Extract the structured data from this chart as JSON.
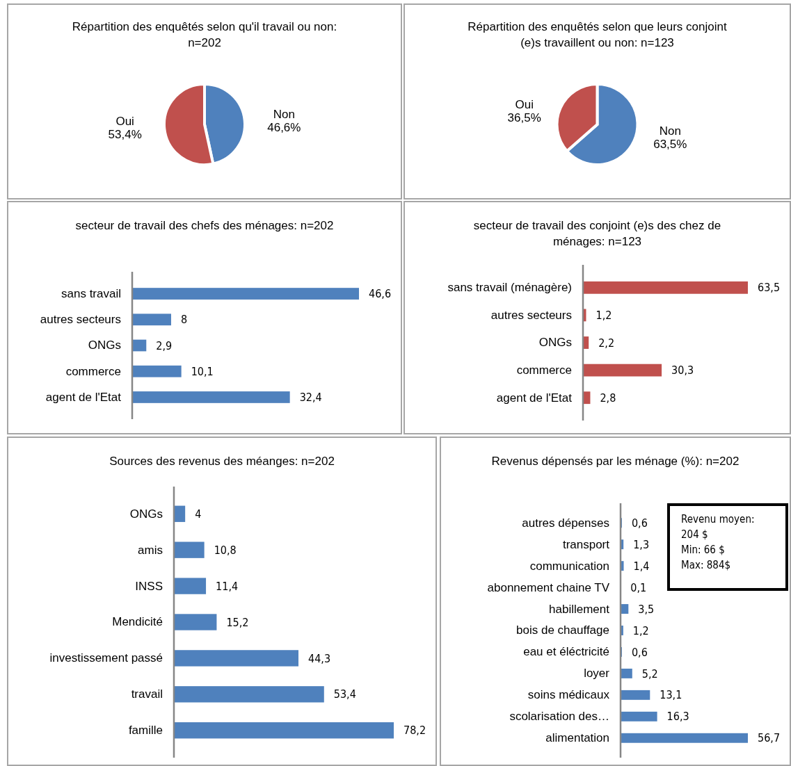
{
  "chart_data": [
    {
      "type": "pie",
      "title": "Répartition des enquêtés selon qu'il travail ou non: n=202",
      "categories": [
        "Non",
        "Oui"
      ],
      "values": [
        46.6,
        53.4
      ],
      "colors": [
        "#4f81bd",
        "#c0504d"
      ],
      "value_labels": [
        "46,6%",
        "53,4%"
      ]
    },
    {
      "type": "pie",
      "title": "Répartition des enquêtés selon que leurs conjoint (e)s travaillent ou non: n=123",
      "categories": [
        "Non",
        "Oui"
      ],
      "values": [
        63.5,
        36.5
      ],
      "colors": [
        "#4f81bd",
        "#c0504d"
      ],
      "value_labels": [
        "63,5%",
        "36,5%"
      ]
    },
    {
      "type": "bar",
      "orientation": "horizontal",
      "title": "secteur de travail des chefs des ménages: n=202",
      "categories": [
        "sans travail",
        "autres secteurs",
        "ONGs",
        "commerce",
        "agent de l'Etat"
      ],
      "values": [
        46.6,
        8,
        2.9,
        10.1,
        32.4
      ],
      "color": "#4f81bd",
      "value_labels": [
        "46,6",
        "8",
        "2,9",
        "10,1",
        "32,4"
      ]
    },
    {
      "type": "bar",
      "orientation": "horizontal",
      "title": "secteur de travail des conjoint (e)s des chez de ménages: n=123",
      "categories": [
        "sans travail (ménagère)",
        "autres secteurs",
        "ONGs",
        "commerce",
        "agent de l'Etat"
      ],
      "values": [
        63.5,
        1.2,
        2.2,
        30.3,
        2.8
      ],
      "color": "#c0504d",
      "value_labels": [
        "63,5",
        "1,2",
        "2,2",
        "30,3",
        "2,8"
      ]
    },
    {
      "type": "bar",
      "orientation": "horizontal",
      "title": "Sources des revenus des méanges: n=202",
      "categories": [
        "ONGs",
        "amis",
        "INSS",
        "Mendicité",
        "investissement passé",
        "travail",
        "famille"
      ],
      "values": [
        4,
        10.8,
        11.4,
        15.2,
        44.3,
        53.4,
        78.2
      ],
      "color": "#4f81bd",
      "value_labels": [
        "4",
        "10,8",
        "11,4",
        "15,2",
        "44,3",
        "53,4",
        "78,2"
      ]
    },
    {
      "type": "bar",
      "orientation": "horizontal",
      "title": "Revenus dépensés par les ménage (%): n=202",
      "categories": [
        "autres dépenses",
        "transport",
        "communication",
        "abonnement chaine TV",
        "habillement",
        "bois de chauffage",
        "eau et éléctricité",
        "loyer",
        "soins médicaux",
        "scolarisation des…",
        "alimentation"
      ],
      "values": [
        0.6,
        1.3,
        1.4,
        0.1,
        3.5,
        1.2,
        0.6,
        5.2,
        13.1,
        16.3,
        56.7
      ],
      "color": "#4f81bd",
      "value_labels": [
        "0,6",
        "1,3",
        "1,4",
        "0,1",
        "3,5",
        "1,2",
        "0,6",
        "5,2",
        "13,1",
        "16,3",
        "56,7"
      ],
      "annotations": [
        "Revenu moyen:\n204 $\nMin: 66 $\nMax: 884$"
      ]
    }
  ]
}
